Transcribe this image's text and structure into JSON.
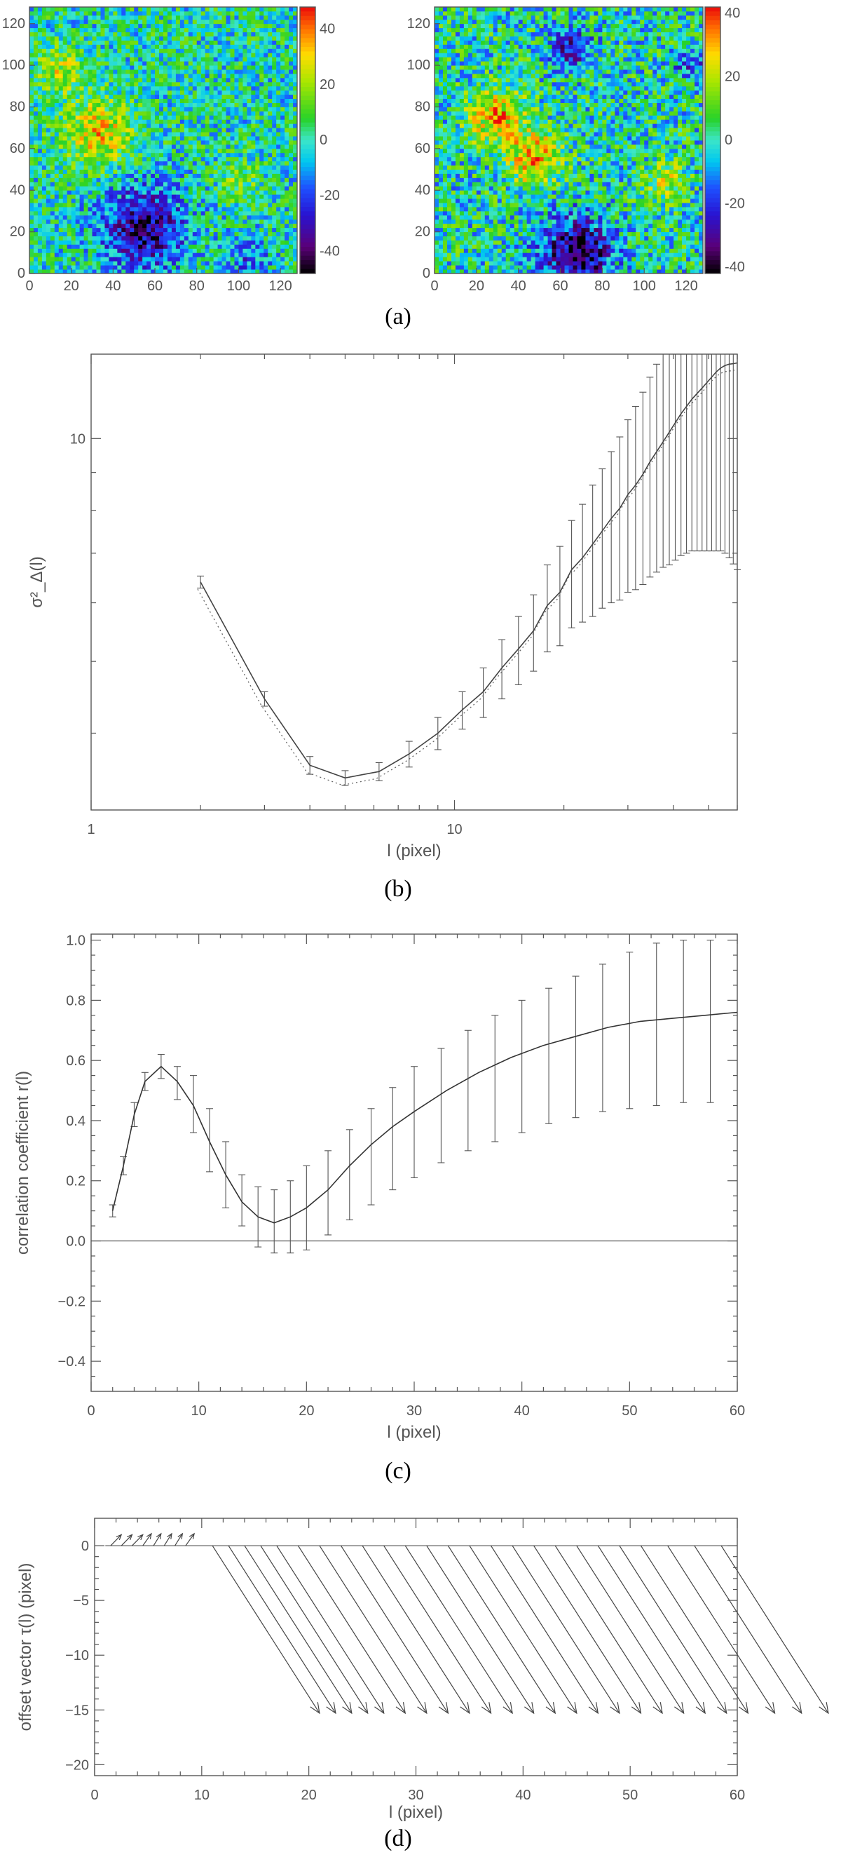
{
  "chart_data": [
    {
      "id": "a",
      "type": "heatmap",
      "caption": "(a)",
      "panels": [
        {
          "x_ticks": [
            "0",
            "20",
            "40",
            "60",
            "80",
            "100",
            "120"
          ],
          "y_ticks": [
            "0",
            "20",
            "40",
            "60",
            "80",
            "100",
            "120"
          ],
          "xlim": [
            0,
            128
          ],
          "ylim": [
            0,
            128
          ],
          "colorbar_ticks": [
            "40",
            "20",
            "0",
            "-20",
            "-40"
          ],
          "colorbar_range": [
            -48,
            48
          ],
          "features": [
            {
              "kind": "high",
              "x": 33,
              "y": 68,
              "amp": 30,
              "r": 16
            },
            {
              "kind": "high",
              "x": 15,
              "y": 98,
              "amp": 22,
              "r": 11
            },
            {
              "kind": "high",
              "x": 100,
              "y": 45,
              "amp": 14,
              "r": 9
            },
            {
              "kind": "low",
              "x": 55,
              "y": 22,
              "amp": -38,
              "r": 20
            },
            {
              "kind": "low",
              "x": 105,
              "y": 8,
              "amp": -18,
              "r": 10
            }
          ]
        },
        {
          "x_ticks": [
            "0",
            "20",
            "40",
            "60",
            "80",
            "100",
            "120"
          ],
          "y_ticks": [
            "0",
            "20",
            "40",
            "60",
            "80",
            "100",
            "120"
          ],
          "xlim": [
            0,
            128
          ],
          "ylim": [
            0,
            128
          ],
          "colorbar_ticks": [
            "40",
            "20",
            "0",
            "-20",
            "-40"
          ],
          "colorbar_range": [
            -42,
            42
          ],
          "features": [
            {
              "kind": "high",
              "x": 30,
              "y": 75,
              "amp": 28,
              "r": 14
            },
            {
              "kind": "high",
              "x": 48,
              "y": 55,
              "amp": 32,
              "r": 12
            },
            {
              "kind": "high",
              "x": 110,
              "y": 45,
              "amp": 16,
              "r": 10
            },
            {
              "kind": "low",
              "x": 68,
              "y": 10,
              "amp": -38,
              "r": 17
            },
            {
              "kind": "low",
              "x": 65,
              "y": 108,
              "amp": -24,
              "r": 10
            },
            {
              "kind": "low",
              "x": 122,
              "y": 100,
              "amp": -16,
              "r": 8
            }
          ]
        }
      ]
    },
    {
      "id": "b",
      "type": "line",
      "caption": "(b)",
      "ylabel": "σ²_Δ(l)",
      "xlabel": "l (pixel)",
      "x_scale": "log",
      "y_scale": "log",
      "xlim": [
        1,
        60
      ],
      "ylim": [
        3.15,
        13.0
      ],
      "x_ticks": [
        1,
        10
      ],
      "y_ticks": [
        10
      ],
      "x": [
        2,
        3,
        4,
        5,
        6.2,
        7.5,
        9,
        10.5,
        12,
        13.5,
        15,
        16.5,
        18,
        19.5,
        21,
        22.5,
        24,
        25.5,
        27,
        28.5,
        30,
        31.5,
        33,
        34.5,
        36,
        37.5,
        39,
        40.5,
        42,
        43.5,
        45,
        46.5,
        48,
        49.5,
        51,
        52.5,
        54,
        55.5,
        57,
        58.5,
        60
      ],
      "y": [
        6.4,
        4.45,
        3.62,
        3.48,
        3.55,
        3.75,
        4.0,
        4.3,
        4.55,
        4.9,
        5.2,
        5.5,
        5.95,
        6.2,
        6.65,
        6.9,
        7.2,
        7.5,
        7.8,
        8.05,
        8.4,
        8.65,
        8.95,
        9.3,
        9.6,
        9.9,
        10.2,
        10.5,
        10.8,
        11.05,
        11.3,
        11.5,
        11.7,
        11.9,
        12.1,
        12.3,
        12.45,
        12.55,
        12.6,
        12.62,
        12.65
      ],
      "y_err": [
        0.12,
        0.1,
        0.1,
        0.08,
        0.1,
        0.15,
        0.2,
        0.25,
        0.35,
        0.45,
        0.55,
        0.65,
        0.8,
        0.95,
        1.1,
        1.25,
        1.45,
        1.6,
        1.8,
        2.0,
        2.2,
        2.4,
        2.6,
        2.8,
        3.0,
        3.2,
        3.45,
        3.65,
        3.85,
        4.05,
        4.25,
        4.45,
        4.65,
        4.85,
        5.05,
        5.25,
        5.4,
        5.55,
        5.7,
        5.85,
        6.0
      ],
      "err_every": 1,
      "dotted_offset": -0.97
    },
    {
      "id": "c",
      "type": "line",
      "caption": "(c)",
      "ylabel": "correlation coefficient r(l)",
      "xlabel": "l (pixel)",
      "xlim": [
        0,
        60
      ],
      "ylim": [
        -0.5,
        1.02
      ],
      "x_ticks": [
        0,
        10,
        20,
        30,
        40,
        50,
        60
      ],
      "y_ticks": [
        "-0.4",
        "-0.2",
        "0.0",
        "0.2",
        "0.4",
        "0.6",
        "0.8",
        "1.0"
      ],
      "x": [
        2,
        3,
        4,
        5,
        6.5,
        8,
        9.5,
        11,
        12.5,
        14,
        15.5,
        17,
        18.5,
        20,
        22,
        24,
        26,
        28,
        30,
        33,
        36,
        39,
        42,
        45,
        48,
        51,
        54,
        57,
        60
      ],
      "y": [
        0.1,
        0.25,
        0.42,
        0.53,
        0.58,
        0.53,
        0.45,
        0.33,
        0.22,
        0.13,
        0.08,
        0.06,
        0.08,
        0.11,
        0.17,
        0.25,
        0.32,
        0.38,
        0.43,
        0.5,
        0.56,
        0.61,
        0.65,
        0.68,
        0.71,
        0.73,
        0.74,
        0.75,
        0.76
      ],
      "err_x": [
        2,
        3,
        4,
        5,
        6.5,
        8,
        9.5,
        11,
        12.5,
        14,
        15.5,
        17,
        18.5,
        20,
        22,
        24,
        26,
        28,
        30,
        32.5,
        35,
        37.5,
        40,
        42.5,
        45,
        47.5,
        50,
        52.5,
        55,
        57.5
      ],
      "err_lo": [
        0.08,
        0.22,
        0.38,
        0.5,
        0.54,
        0.47,
        0.36,
        0.23,
        0.11,
        0.05,
        -0.02,
        -0.04,
        -0.04,
        -0.03,
        0.02,
        0.07,
        0.12,
        0.17,
        0.21,
        0.26,
        0.3,
        0.33,
        0.36,
        0.39,
        0.41,
        0.43,
        0.44,
        0.45,
        0.46,
        0.46
      ],
      "err_hi": [
        0.12,
        0.28,
        0.46,
        0.56,
        0.62,
        0.58,
        0.55,
        0.44,
        0.33,
        0.22,
        0.18,
        0.17,
        0.2,
        0.25,
        0.3,
        0.37,
        0.44,
        0.51,
        0.58,
        0.64,
        0.7,
        0.75,
        0.8,
        0.84,
        0.88,
        0.92,
        0.96,
        0.99,
        1.0,
        1.0
      ],
      "zero_line": true
    },
    {
      "id": "d",
      "type": "line",
      "caption": "(d)",
      "ylabel": "offset vector τ(l) (pixel)",
      "xlabel": "l (pixel)",
      "xlim": [
        0,
        60
      ],
      "ylim": [
        -21,
        2.5
      ],
      "x_ticks": [
        0,
        10,
        20,
        30,
        40,
        50,
        60
      ],
      "y_ticks": [
        0,
        -5,
        -10,
        -15,
        -20
      ],
      "vectors_short": [
        {
          "x": 1.5,
          "dx": 1.0,
          "dy": 1.0
        },
        {
          "x": 2.5,
          "dx": 1.0,
          "dy": 1.0
        },
        {
          "x": 3.5,
          "dx": 1.0,
          "dy": 1.0
        },
        {
          "x": 4.5,
          "dx": 0.8,
          "dy": 1.1
        },
        {
          "x": 5.5,
          "dx": 0.7,
          "dy": 1.1
        },
        {
          "x": 6.5,
          "dx": 0.7,
          "dy": 1.1
        },
        {
          "x": 7.5,
          "dx": 0.7,
          "dy": 1.1
        },
        {
          "x": 8.5,
          "dx": 0.8,
          "dy": 1.1
        }
      ],
      "vectors_long": [
        {
          "x": 11,
          "dx": 10,
          "dy": -15.3
        },
        {
          "x": 12.5,
          "dx": 10,
          "dy": -15.3
        },
        {
          "x": 14,
          "dx": 10,
          "dy": -15.3
        },
        {
          "x": 15.5,
          "dx": 10,
          "dy": -15.3
        },
        {
          "x": 17,
          "dx": 10,
          "dy": -15.3
        },
        {
          "x": 19,
          "dx": 10,
          "dy": -15.3
        },
        {
          "x": 21,
          "dx": 10,
          "dy": -15.3
        },
        {
          "x": 23,
          "dx": 10,
          "dy": -15.3
        },
        {
          "x": 25,
          "dx": 10,
          "dy": -15.3
        },
        {
          "x": 27,
          "dx": 10,
          "dy": -15.3
        },
        {
          "x": 29,
          "dx": 10,
          "dy": -15.3
        },
        {
          "x": 31,
          "dx": 10,
          "dy": -15.3
        },
        {
          "x": 33,
          "dx": 10,
          "dy": -15.3
        },
        {
          "x": 35,
          "dx": 10,
          "dy": -15.3
        },
        {
          "x": 37,
          "dx": 10,
          "dy": -15.3
        },
        {
          "x": 39,
          "dx": 10,
          "dy": -15.3
        },
        {
          "x": 41,
          "dx": 10,
          "dy": -15.3
        },
        {
          "x": 43,
          "dx": 10,
          "dy": -15.3
        },
        {
          "x": 45,
          "dx": 10,
          "dy": -15.3
        },
        {
          "x": 47,
          "dx": 10,
          "dy": -15.3
        },
        {
          "x": 49,
          "dx": 10,
          "dy": -15.3
        },
        {
          "x": 51,
          "dx": 10,
          "dy": -15.3
        },
        {
          "x": 53.5,
          "dx": 10,
          "dy": -15.3
        },
        {
          "x": 56,
          "dx": 10,
          "dy": -15.3
        },
        {
          "x": 58.5,
          "dx": 10,
          "dy": -15.3
        }
      ]
    }
  ]
}
